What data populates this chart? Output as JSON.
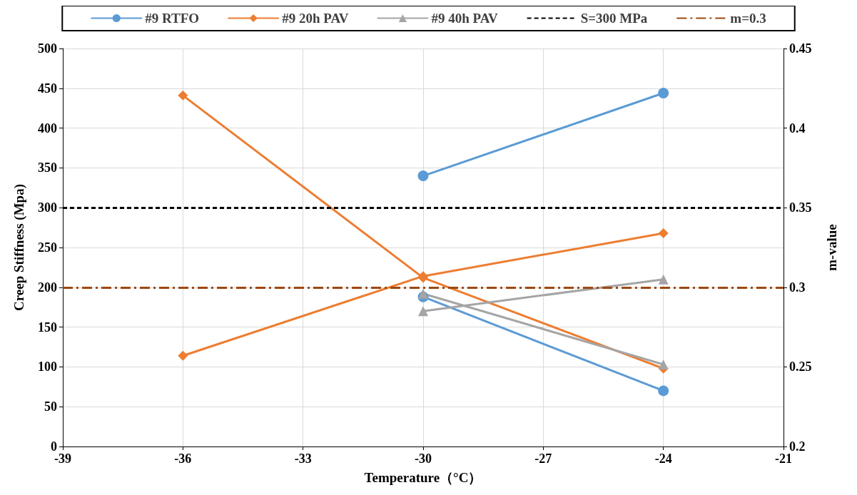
{
  "chart_data": {
    "type": "line",
    "xlabel": "Temperature（°C）",
    "ylabel": "Creep Stiffness (Mpa)",
    "y2label": "m-value",
    "xlim": [
      -39,
      -21
    ],
    "xticks": [
      -39,
      -36,
      -33,
      -30,
      -27,
      -24,
      -21
    ],
    "ylim": [
      0,
      500
    ],
    "yticks": [
      0,
      50,
      100,
      150,
      200,
      250,
      300,
      350,
      400,
      450,
      500
    ],
    "y2lim": [
      0.2,
      0.45
    ],
    "y2ticks": [
      0.2,
      0.25,
      0.3,
      0.35,
      0.4,
      0.45
    ],
    "series": [
      {
        "name": "#9 RTFO",
        "color": "#5b9bd5",
        "marker": "circle",
        "x": [
          -30,
          -24
        ],
        "values": [
          188,
          70
        ]
      },
      {
        "color": "#5b9bd5",
        "marker": "circle",
        "axis": "y2",
        "x": [
          -30,
          -24
        ],
        "values": [
          0.37,
          0.422
        ]
      },
      {
        "name": "#9 20h PAV",
        "color": "#ed7d31",
        "marker": "diamond",
        "x": [
          -36,
          -30,
          -24
        ],
        "values": [
          441,
          212,
          98
        ]
      },
      {
        "color": "#ed7d31",
        "marker": "diamond",
        "axis": "y2",
        "x": [
          -36,
          -30,
          -24
        ],
        "values": [
          0.257,
          0.307,
          0.334
        ]
      },
      {
        "name": "#9 40h PAV",
        "color": "#a5a5a5",
        "marker": "triangle",
        "x": [
          -30,
          -24
        ],
        "values": [
          192,
          103
        ]
      },
      {
        "color": "#a5a5a5",
        "marker": "triangle",
        "axis": "y2",
        "x": [
          -30,
          -24
        ],
        "values": [
          0.285,
          0.305
        ]
      }
    ],
    "ref_lines": [
      {
        "axis": "y",
        "value": 300,
        "label": "S=300 MPa",
        "color": "#000000",
        "line_style": "dashed"
      },
      {
        "axis": "y2",
        "value": 0.3,
        "label": "m=0.3",
        "color": "#9e480e",
        "line_style": "dashdot"
      }
    ],
    "grid": true,
    "legend": "top",
    "line_style": "solid"
  }
}
